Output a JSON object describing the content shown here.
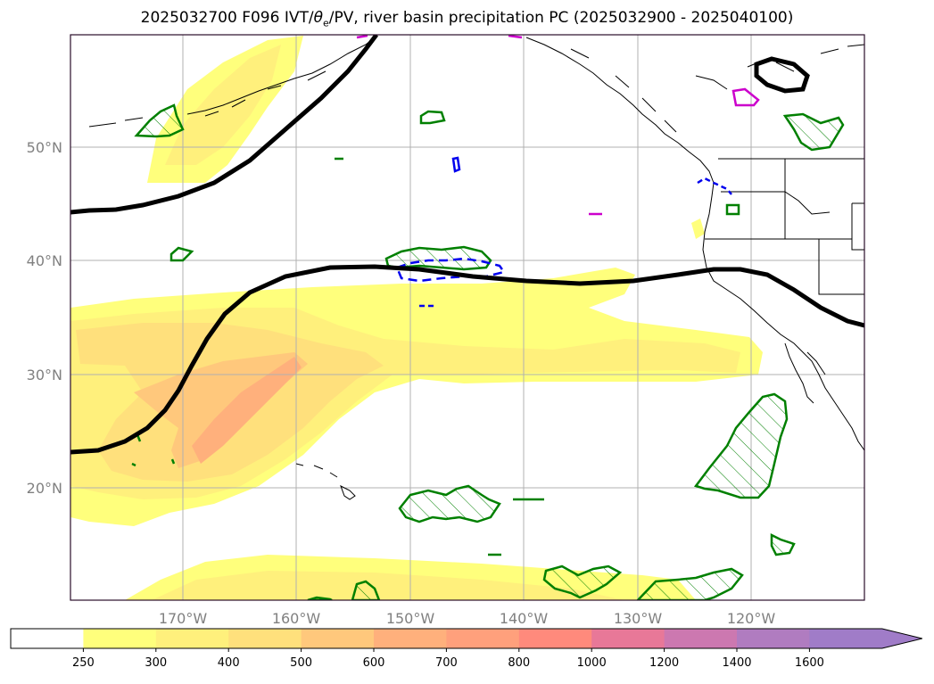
{
  "title": {
    "prefix": "2025032700 F096 IVT/",
    "theta": "θ",
    "theta_sub": "e",
    "suffix": "/PV, river basin precipitation PC (2025032900 - 2025040100)"
  },
  "map": {
    "lon_labels": [
      "170°W",
      "160°W",
      "150°W",
      "140°W",
      "130°W",
      "120°W"
    ],
    "lat_labels": [
      "50°N",
      "40°N",
      "30°N",
      "20°N"
    ],
    "lon_values": [
      -170,
      -160,
      -150,
      -140,
      -130,
      -120
    ],
    "lat_values": [
      50,
      40,
      30,
      20
    ],
    "label_color": "#808080",
    "gridline_color": "#b0b0b0",
    "border_color": "#2a0d2a"
  },
  "colorbar": {
    "tick_labels": [
      "250",
      "300",
      "400",
      "500",
      "600",
      "700",
      "800",
      "1000",
      "1200",
      "1400",
      "1600"
    ],
    "colors": [
      "#ffffff",
      "#ffff7c",
      "#fff07c",
      "#ffe07c",
      "#ffc87c",
      "#ffb07c",
      "#ffa07c",
      "#ff8a7c",
      "#e87898",
      "#cc78b0",
      "#b07cc0",
      "#a07cc8"
    ],
    "extend": "max"
  },
  "legend_colors": {
    "theta_e_contour": "#000000",
    "precip_pc_positive": "#008000",
    "precip_pc_negative_dashed": "#0000ee",
    "pv_contour": "#cc00cc"
  }
}
